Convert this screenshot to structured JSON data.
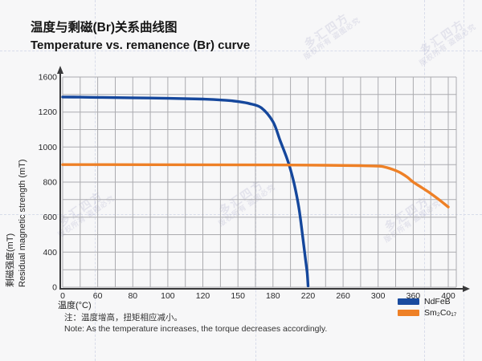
{
  "title": {
    "zh": "温度与剩磁(Br)关系曲线图",
    "en": "Temperature vs. remanence (Br) curve"
  },
  "watermark": {
    "brand": "多汇四方",
    "notice": "版权所有 盗图必究"
  },
  "note": {
    "zh": "注：温度增高，扭矩相应减小。",
    "en": "Note: As the temperature increases, the torque decreases accordingly."
  },
  "chart_data": {
    "type": "line",
    "xlabel": "温度(°C)",
    "ylabel_zh": "剩磁强度(mT)",
    "ylabel_en": "Residual magnetic strength (mT)",
    "x_tick_labels": [
      0,
      60,
      80,
      100,
      120,
      150,
      180,
      220,
      260,
      300,
      360,
      400
    ],
    "y_tick_labels": [
      1600,
      1200,
      1000,
      800,
      600,
      400,
      0
    ],
    "grid": true,
    "grid_color": "#ababaf",
    "axis_color": "#39393b",
    "tick_color": "#29292b",
    "legend_position": "bottom-right",
    "legend": [
      {
        "label": "NdFeB",
        "color": "#1a4b9f"
      },
      {
        "label": "Sm₂Co₁₇",
        "color": "#ee8026"
      }
    ],
    "series": [
      {
        "name": "NdFeB",
        "color": "#15479c",
        "points": [
          [
            0,
            1372
          ],
          [
            30,
            1370
          ],
          [
            60,
            1367
          ],
          [
            90,
            1360
          ],
          [
            120,
            1348
          ],
          [
            140,
            1333
          ],
          [
            150,
            1320
          ],
          [
            160,
            1296
          ],
          [
            170,
            1248
          ],
          [
            180,
            1145
          ],
          [
            188,
            1040
          ],
          [
            195,
            948
          ],
          [
            200,
            872
          ],
          [
            205,
            772
          ],
          [
            210,
            640
          ],
          [
            214,
            485
          ],
          [
            217,
            325
          ],
          [
            219,
            165
          ],
          [
            220,
            15
          ]
        ]
      },
      {
        "name": "Sm₂Co₁₇",
        "color": "#ee8026",
        "points": [
          [
            0,
            900
          ],
          [
            60,
            900
          ],
          [
            120,
            899
          ],
          [
            180,
            898
          ],
          [
            240,
            896
          ],
          [
            280,
            894
          ],
          [
            300,
            891
          ],
          [
            310,
            887
          ],
          [
            320,
            878
          ],
          [
            330,
            866
          ],
          [
            340,
            850
          ],
          [
            350,
            828
          ],
          [
            360,
            800
          ],
          [
            370,
            768
          ],
          [
            380,
            735
          ],
          [
            390,
            698
          ],
          [
            400,
            658
          ]
        ]
      }
    ]
  }
}
